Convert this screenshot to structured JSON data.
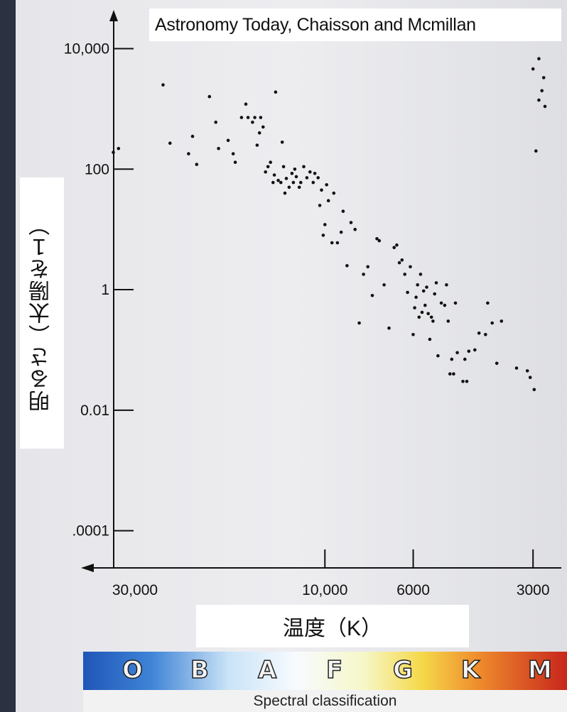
{
  "chart_data": {
    "type": "scatter",
    "title": "Astronomy Today, Chaisson and Mcmillan",
    "xlabel": "温度（K）",
    "ylabel": "明るさ（太陽を１）",
    "x_scale": "log",
    "x_reversed": true,
    "y_scale": "log",
    "xlim": [
      40000,
      2600
    ],
    "ylim": [
      3e-05,
      30000
    ],
    "x_ticks": [
      {
        "value": 30000,
        "label": "30,000"
      },
      {
        "value": 10000,
        "label": "10,000"
      },
      {
        "value": 6000,
        "label": "6000"
      },
      {
        "value": 3000,
        "label": "3000"
      }
    ],
    "y_ticks": [
      {
        "value": 10000,
        "label": "10,000"
      },
      {
        "value": 100,
        "label": "100"
      },
      {
        "value": 1,
        "label": "1"
      },
      {
        "value": 0.01,
        "label": "0.01"
      },
      {
        "value": 0.0001,
        "label": ".0001"
      }
    ],
    "grid": false,
    "points": [
      [
        34000,
        190
      ],
      [
        33000,
        220
      ],
      [
        25500,
        2500
      ],
      [
        24500,
        270
      ],
      [
        22000,
        180
      ],
      [
        21500,
        350
      ],
      [
        21000,
        120
      ],
      [
        19500,
        1600
      ],
      [
        18800,
        600
      ],
      [
        18500,
        220
      ],
      [
        17500,
        300
      ],
      [
        17000,
        180
      ],
      [
        16800,
        130
      ],
      [
        16200,
        720
      ],
      [
        15800,
        1200
      ],
      [
        15600,
        720
      ],
      [
        15200,
        600
      ],
      [
        15000,
        720
      ],
      [
        14800,
        250
      ],
      [
        14600,
        400
      ],
      [
        14500,
        720
      ],
      [
        14300,
        500
      ],
      [
        14100,
        90
      ],
      [
        13900,
        110
      ],
      [
        13700,
        130
      ],
      [
        13500,
        60
      ],
      [
        13400,
        80
      ],
      [
        13300,
        1900
      ],
      [
        13100,
        65
      ],
      [
        12900,
        60
      ],
      [
        12800,
        280
      ],
      [
        12700,
        110
      ],
      [
        12600,
        40
      ],
      [
        12500,
        70
      ],
      [
        12300,
        50
      ],
      [
        12100,
        85
      ],
      [
        12000,
        60
      ],
      [
        11900,
        100
      ],
      [
        11800,
        75
      ],
      [
        11600,
        50
      ],
      [
        11500,
        60
      ],
      [
        11300,
        110
      ],
      [
        11100,
        72
      ],
      [
        10900,
        90
      ],
      [
        10700,
        60
      ],
      [
        10600,
        85
      ],
      [
        10400,
        72
      ],
      [
        10300,
        25
      ],
      [
        10200,
        45
      ],
      [
        10100,
        8
      ],
      [
        10000,
        12
      ],
      [
        9900,
        55
      ],
      [
        9800,
        30
      ],
      [
        9600,
        6
      ],
      [
        9500,
        40
      ],
      [
        9300,
        6
      ],
      [
        9100,
        9
      ],
      [
        9000,
        20
      ],
      [
        8800,
        2.5
      ],
      [
        8600,
        13
      ],
      [
        8400,
        10
      ],
      [
        8200,
        0.28
      ],
      [
        8000,
        1.8
      ],
      [
        7800,
        2.4
      ],
      [
        7600,
        0.8
      ],
      [
        7400,
        7
      ],
      [
        7300,
        6.5
      ],
      [
        7100,
        1.2
      ],
      [
        6900,
        0.23
      ],
      [
        6700,
        5
      ],
      [
        6600,
        5.5
      ],
      [
        6500,
        2.8
      ],
      [
        6400,
        3.1
      ],
      [
        6300,
        1.8
      ],
      [
        6200,
        0.9
      ],
      [
        6100,
        2.4
      ],
      [
        6000,
        0.18
      ],
      [
        5950,
        0.5
      ],
      [
        5900,
        0.75
      ],
      [
        5850,
        1.2
      ],
      [
        5800,
        0.35
      ],
      [
        5750,
        1.8
      ],
      [
        5700,
        0.42
      ],
      [
        5650,
        0.95
      ],
      [
        5600,
        0.55
      ],
      [
        5550,
        1.1
      ],
      [
        5500,
        0.4
      ],
      [
        5450,
        0.15
      ],
      [
        5400,
        0.35
      ],
      [
        5350,
        0.3
      ],
      [
        5300,
        0.85
      ],
      [
        5250,
        1.3
      ],
      [
        5200,
        0.08
      ],
      [
        5100,
        0.6
      ],
      [
        5000,
        0.55
      ],
      [
        4950,
        1.2
      ],
      [
        4900,
        0.3
      ],
      [
        4850,
        0.04
      ],
      [
        4800,
        0.07
      ],
      [
        4750,
        0.04
      ],
      [
        4700,
        0.6
      ],
      [
        4650,
        0.09
      ],
      [
        4500,
        0.03
      ],
      [
        4450,
        0.07
      ],
      [
        4400,
        0.03
      ],
      [
        4350,
        0.095
      ],
      [
        4200,
        0.1
      ],
      [
        4100,
        0.19
      ],
      [
        3950,
        0.18
      ],
      [
        3900,
        0.6
      ],
      [
        3800,
        0.28
      ],
      [
        3700,
        0.06
      ],
      [
        3600,
        0.3
      ],
      [
        3300,
        0.05
      ],
      [
        3100,
        0.045
      ],
      [
        3050,
        0.035
      ],
      [
        2980,
        0.022
      ],
      [
        3000,
        4600
      ],
      [
        2900,
        6800
      ],
      [
        2850,
        2000
      ],
      [
        2800,
        1100
      ],
      [
        2900,
        1400
      ],
      [
        2950,
        200
      ],
      [
        2820,
        3300
      ]
    ]
  },
  "spectral": {
    "caption": "Spectral classification",
    "classes": [
      "O",
      "B",
      "A",
      "F",
      "G",
      "K",
      "M"
    ]
  }
}
